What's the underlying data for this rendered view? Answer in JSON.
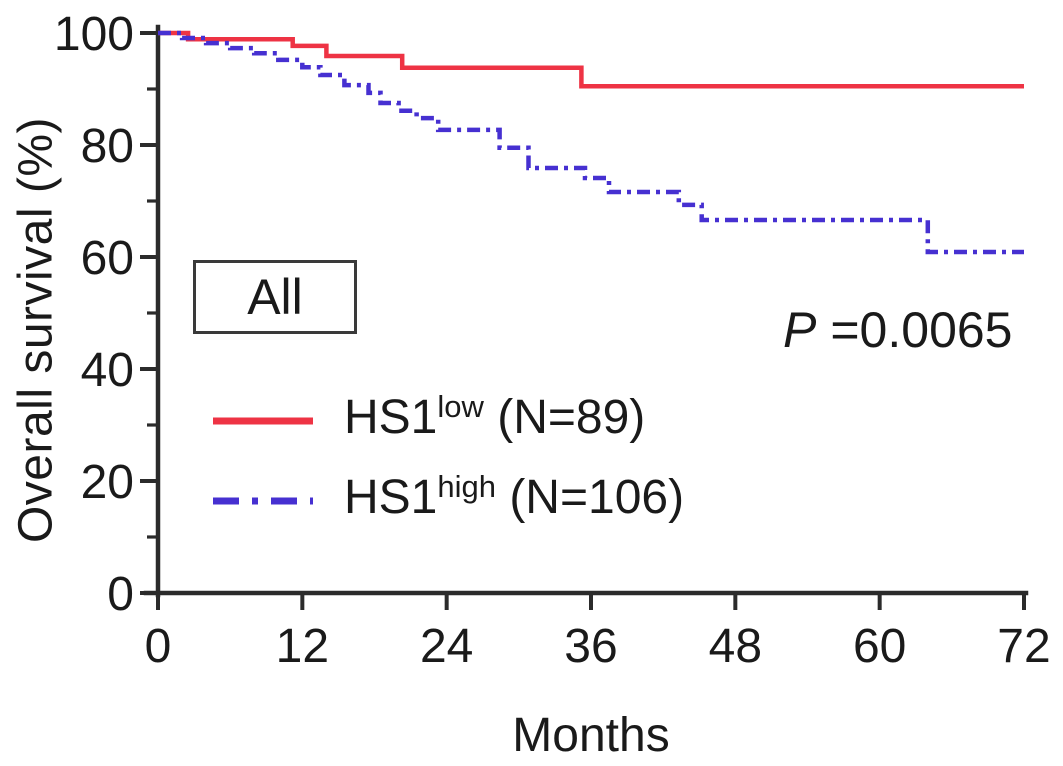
{
  "figure": {
    "background": "#ffffff",
    "text_color": "#1a1a1a",
    "axis_color": "#2b2b2b"
  },
  "chart_data": {
    "type": "line",
    "subtype": "kaplan-meier-step",
    "title": "",
    "xlabel": "Months",
    "ylabel": "Overall survival (%)",
    "xlim": [
      0,
      72
    ],
    "ylim": [
      0,
      100
    ],
    "x_ticks": [
      0,
      12,
      24,
      36,
      48,
      60,
      72
    ],
    "y_ticks_major": [
      0,
      20,
      40,
      60,
      80,
      100
    ],
    "y_ticks_minor": [
      10,
      30,
      50,
      70,
      90
    ],
    "grid": "off",
    "legend_position": "lower-left-inside",
    "annotation_box": "All",
    "p_label": "P",
    "p_value": "=0.0065",
    "series": [
      {
        "name": "HS1low (N=89)",
        "label_base": "HS1",
        "label_sup": "low",
        "label_suffix": " (N=89)",
        "n": 89,
        "color": "#ee3344",
        "style": "solid",
        "final_survival_pct": 90.5,
        "points": [
          [
            0,
            100
          ],
          [
            2.5,
            100
          ],
          [
            2.5,
            98.9
          ],
          [
            11.2,
            98.9
          ],
          [
            11.2,
            97.7
          ],
          [
            14,
            97.7
          ],
          [
            14,
            95.9
          ],
          [
            20.3,
            95.9
          ],
          [
            20.3,
            93.8
          ],
          [
            35.2,
            93.8
          ],
          [
            35.2,
            90.5
          ],
          [
            72,
            90.5
          ]
        ]
      },
      {
        "name": "HS1high (N=106)",
        "label_base": "HS1",
        "label_sup": "high",
        "label_suffix": " (N=106)",
        "n": 106,
        "color": "#4630d1",
        "style": "dash-dot",
        "final_survival_pct": 60.9,
        "points": [
          [
            0,
            100
          ],
          [
            2,
            100
          ],
          [
            2,
            99.1
          ],
          [
            4,
            99.1
          ],
          [
            4,
            98.2
          ],
          [
            6,
            98.2
          ],
          [
            6,
            97.3
          ],
          [
            8,
            97.3
          ],
          [
            8,
            96.4
          ],
          [
            10,
            96.4
          ],
          [
            10,
            95.2
          ],
          [
            12,
            95.2
          ],
          [
            12,
            93.9
          ],
          [
            13.5,
            93.9
          ],
          [
            13.5,
            92.5
          ],
          [
            15.5,
            92.5
          ],
          [
            15.5,
            90.7
          ],
          [
            17.5,
            90.7
          ],
          [
            17.5,
            89.3
          ],
          [
            18.5,
            89.3
          ],
          [
            18.5,
            87.5
          ],
          [
            20,
            87.5
          ],
          [
            20,
            86.1
          ],
          [
            21.5,
            86.1
          ],
          [
            21.5,
            84.8
          ],
          [
            23.3,
            84.8
          ],
          [
            23.3,
            82.7
          ],
          [
            28.4,
            82.7
          ],
          [
            28.4,
            79.5
          ],
          [
            30.8,
            79.5
          ],
          [
            30.8,
            75.9
          ],
          [
            35.5,
            75.9
          ],
          [
            35.5,
            74.1
          ],
          [
            37.5,
            74.1
          ],
          [
            37.5,
            71.6
          ],
          [
            43.3,
            71.6
          ],
          [
            43.3,
            69.3
          ],
          [
            45.2,
            69.3
          ],
          [
            45.2,
            66.6
          ],
          [
            64,
            66.6
          ],
          [
            64,
            60.9
          ],
          [
            72,
            60.9
          ]
        ]
      }
    ]
  }
}
